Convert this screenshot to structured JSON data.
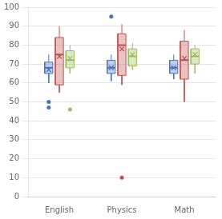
{
  "chart_data": {
    "type": "box",
    "categories": [
      "English",
      "Physics",
      "Math"
    ],
    "series": [
      {
        "color": "#4472C4",
        "values": [
          {
            "q1": 65,
            "median": 68,
            "q3": 71,
            "whislo": 60,
            "whishi": 75,
            "mean": 67,
            "fliers": [
              50,
              47
            ]
          },
          {
            "q1": 65,
            "median": 68,
            "q3": 72,
            "whislo": 61,
            "whishi": 75,
            "mean": 68,
            "fliers": [
              95
            ]
          },
          {
            "q1": 65,
            "median": 68,
            "q3": 72,
            "whislo": 62,
            "whishi": 75,
            "mean": 68,
            "fliers": []
          }
        ]
      },
      {
        "color": "#C0504D",
        "values": [
          {
            "q1": 59,
            "median": 75,
            "q3": 84,
            "whislo": 55,
            "whishi": 90,
            "mean": 74,
            "fliers": []
          },
          {
            "q1": 64,
            "median": 80,
            "q3": 86,
            "whislo": 59,
            "whishi": 91,
            "mean": 78,
            "fliers": [
              10
            ]
          },
          {
            "q1": 62,
            "median": 72,
            "q3": 82,
            "whislo": 50,
            "whishi": 88,
            "mean": 73,
            "fliers": []
          }
        ]
      },
      {
        "color": "#9BBB59",
        "values": [
          {
            "q1": 68,
            "median": 72,
            "q3": 77,
            "whislo": 65,
            "whishi": 80,
            "mean": 73,
            "fliers": [
              46
            ]
          },
          {
            "q1": 69,
            "median": 74,
            "q3": 78,
            "whislo": 67,
            "whishi": 81,
            "mean": 75,
            "fliers": []
          },
          {
            "q1": 70,
            "median": 74,
            "q3": 78,
            "whislo": 65,
            "whishi": 80,
            "mean": 75,
            "fliers": []
          }
        ]
      }
    ],
    "ylim": [
      0,
      100
    ],
    "yticks": [
      0,
      10,
      20,
      30,
      40,
      50,
      60,
      70,
      80,
      90,
      100
    ],
    "grid": true
  }
}
